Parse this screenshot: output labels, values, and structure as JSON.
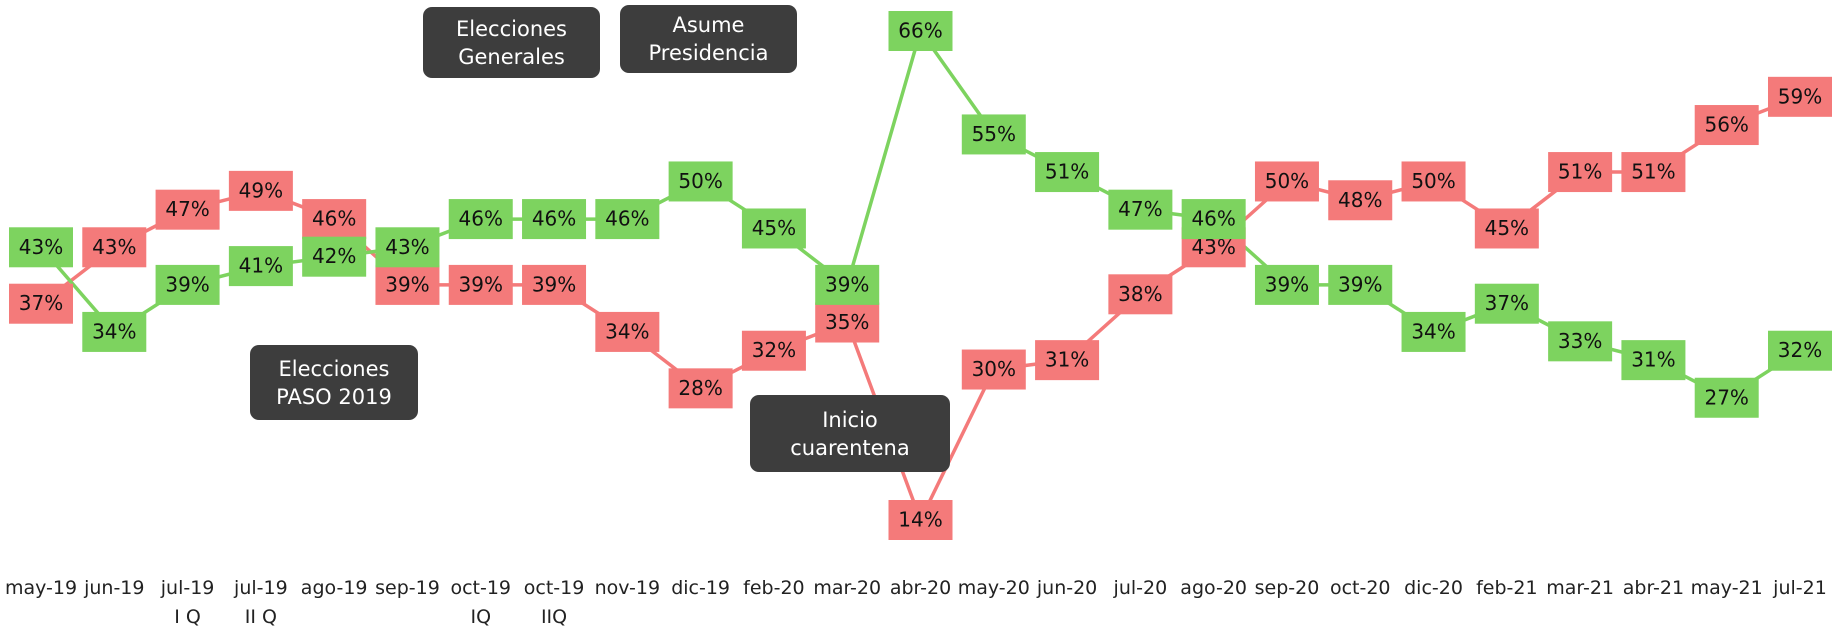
{
  "chart_data": {
    "type": "line",
    "categories": [
      "may-19",
      "jun-19",
      "jul-19\nI Q",
      "jul-19\nII Q",
      "ago-19",
      "sep-19",
      "oct-19\nIQ",
      "oct-19\nIIQ",
      "nov-19",
      "dic-19",
      "feb-20",
      "mar-20",
      "abr-20",
      "may-20",
      "jun-20",
      "jul-20",
      "ago-20",
      "sep-20",
      "oct-20",
      "dic-20",
      "feb-21",
      "mar-21",
      "abr-21",
      "may-21",
      "jul-21"
    ],
    "series": [
      {
        "color": "#7dd35f",
        "values": [
          43,
          34,
          39,
          41,
          42,
          43,
          46,
          46,
          46,
          50,
          45,
          39,
          66,
          55,
          51,
          47,
          46,
          39,
          39,
          34,
          37,
          33,
          31,
          27,
          32
        ],
        "value_labels": [
          "43%",
          "34%",
          "39%",
          "41%",
          "42%",
          "43%",
          "46%",
          "46%",
          "46%",
          "50%",
          "45%",
          "39%",
          "66%",
          "55%",
          "51%",
          "47%",
          "46%",
          "39%",
          "39%",
          "34%",
          "37%",
          "33%",
          "31%",
          "27%",
          "32%"
        ]
      },
      {
        "color": "#f47a7a",
        "values": [
          37,
          43,
          47,
          49,
          46,
          39,
          39,
          39,
          34,
          28,
          32,
          35,
          14,
          30,
          31,
          38,
          43,
          50,
          48,
          50,
          45,
          51,
          51,
          56,
          59
        ],
        "value_labels": [
          "37%",
          "43%",
          "47%",
          "49%",
          "46%",
          "39%",
          "39%",
          "39%",
          "34%",
          "28%",
          "32%",
          "35%",
          "14%",
          "30%",
          "31%",
          "38%",
          "43%",
          "50%",
          "48%",
          "50%",
          "45%",
          "51%",
          "51%",
          "56%",
          "59%"
        ]
      }
    ],
    "annotations": [
      "Elecciones\nGenerales",
      "Asume\nPresidencia",
      "Elecciones\nPASO 2019",
      "Inicio\ncuarentena"
    ]
  }
}
